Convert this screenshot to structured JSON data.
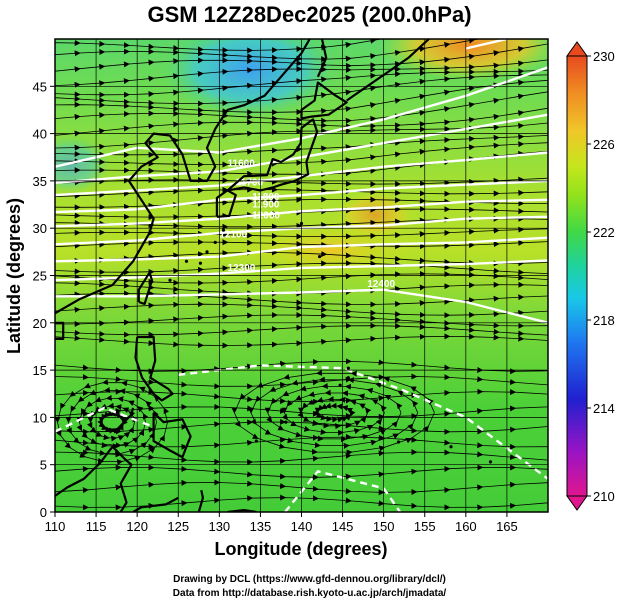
{
  "title": "GSM 12Z28Dec2025 (200.0hPa)",
  "xaxis": {
    "label": "Longitude (degrees)",
    "ticks": [
      "110",
      "115",
      "120",
      "125",
      "130",
      "135",
      "140",
      "145",
      "150",
      "155",
      "160",
      "165"
    ]
  },
  "yaxis": {
    "label": "Latitude (degrees)",
    "ticks": [
      "0",
      "5",
      "10",
      "15",
      "20",
      "25",
      "30",
      "35",
      "40",
      "45"
    ]
  },
  "colorbar": {
    "ticks": [
      "210",
      "214",
      "218",
      "222",
      "226",
      "230"
    ],
    "colors": [
      "#e0168f",
      "#9a14c4",
      "#2020d0",
      "#1f78f0",
      "#19c8e8",
      "#1ed2a0",
      "#40d846",
      "#8ee21c",
      "#c6e61c",
      "#f0c628",
      "#f08a22",
      "#e84a20"
    ]
  },
  "contour_labels": [
    "11600",
    "11700",
    "11800",
    "11900",
    "12000",
    "12100",
    "12300",
    "12400"
  ],
  "credits": [
    "Drawing by DCL (https://www.gfd-dennou.org/library/dcl/)",
    "Data from http://database.rish.kyoto-u.ac.jp/arch/jmadata/"
  ]
}
